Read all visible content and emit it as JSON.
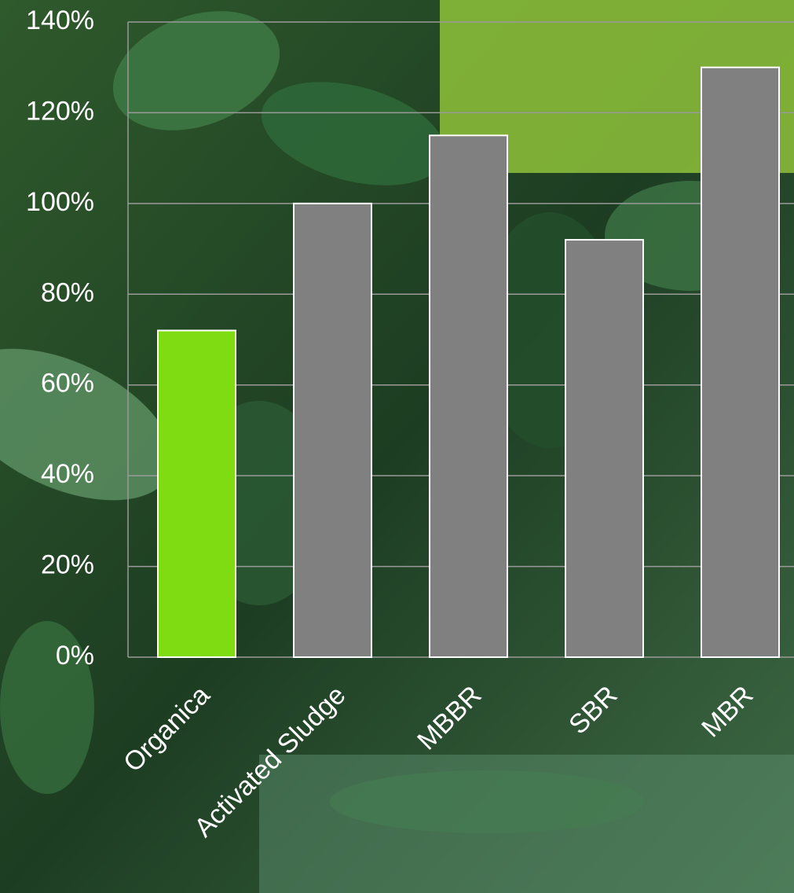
{
  "chart_data": {
    "type": "bar",
    "categories": [
      "Organica",
      "Activated Sludge",
      "MBBR",
      "SBR",
      "MBR"
    ],
    "values": [
      72,
      100,
      115,
      92,
      130
    ],
    "colors": [
      "#7fdb12",
      "#808080",
      "#808080",
      "#808080",
      "#808080"
    ],
    "ylim": [
      0,
      140
    ],
    "yticks": [
      {
        "value": 0,
        "label": "0%"
      },
      {
        "value": 20,
        "label": "20%"
      },
      {
        "value": 40,
        "label": "40%"
      },
      {
        "value": 60,
        "label": "60%"
      },
      {
        "value": 80,
        "label": "80%"
      },
      {
        "value": 100,
        "label": "100%"
      },
      {
        "value": 120,
        "label": "120%"
      },
      {
        "value": 140,
        "label": "140%"
      }
    ],
    "grid": true
  }
}
